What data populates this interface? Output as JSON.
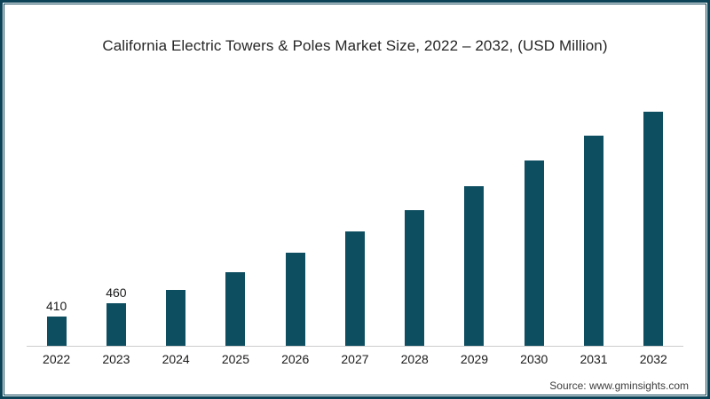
{
  "window": {
    "background": "#ffffff",
    "frame_border_color": "#0d4357"
  },
  "title": {
    "text": "California Electric Towers & Poles Market Size, 2022 – 2032, (USD Million)"
  },
  "source": {
    "text": "Source: www.gminsights.com"
  },
  "chart_data": {
    "type": "bar",
    "title": "California Electric Towers & Poles Market Size, 2022 – 2032, (USD Million)",
    "unit": "USD Million",
    "categories": [
      "2022",
      "2023",
      "2024",
      "2025",
      "2026",
      "2027",
      "2028",
      "2029",
      "2030",
      "2031",
      "2032"
    ],
    "values": [
      410,
      460,
      510,
      575,
      650,
      730,
      810,
      900,
      995,
      1090,
      1180
    ],
    "data_labels": [
      "410",
      "460",
      "",
      "",
      "",
      "",
      "",
      "",
      "",
      "",
      ""
    ],
    "bar_color": "#0e4e61",
    "axis_line_color": "#cccccc",
    "tick_label_color": "#1a1a1a",
    "ylim": [
      300,
      1180
    ],
    "grid": false,
    "legend": false,
    "xlabel": "",
    "ylabel": ""
  }
}
